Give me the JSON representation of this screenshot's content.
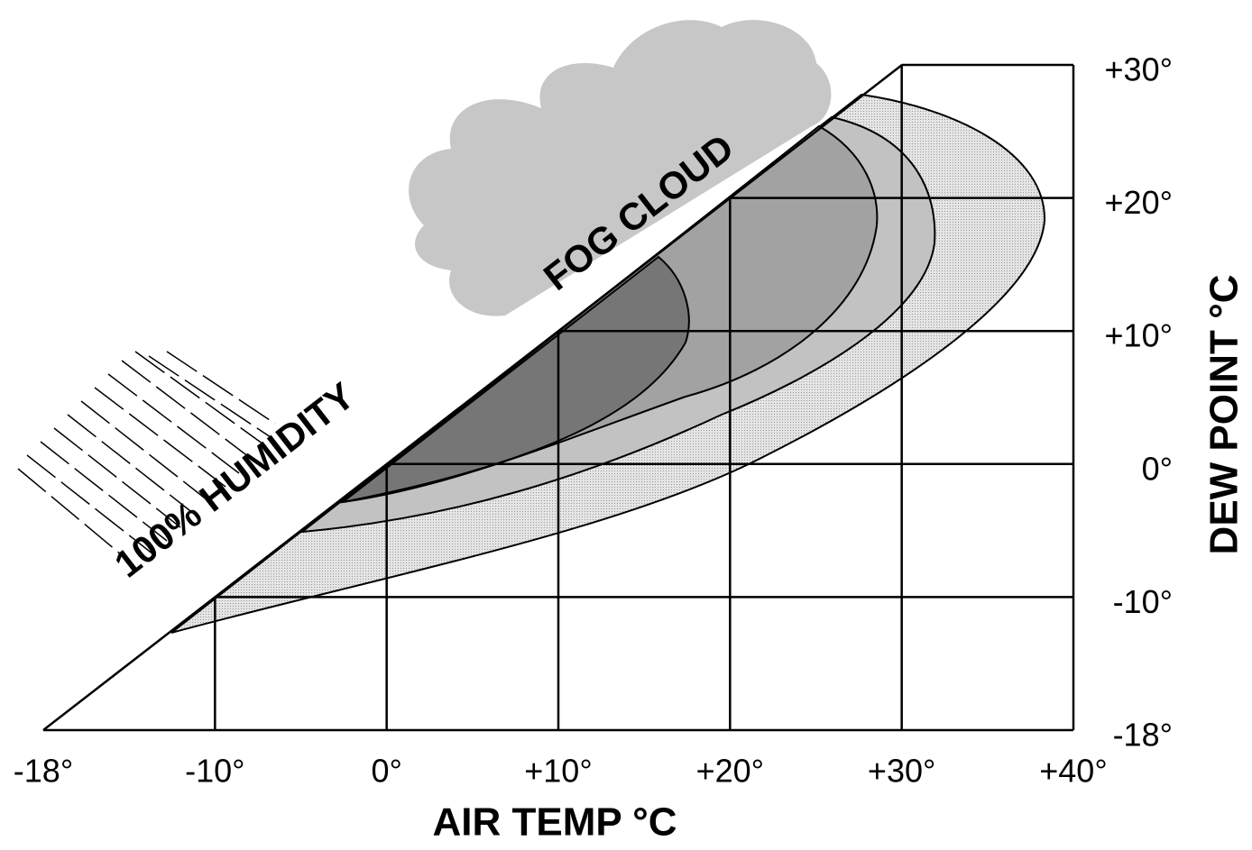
{
  "chart_data": {
    "type": "contour",
    "x_label": "AIR TEMP °C",
    "y_label": "DEW POINT °C",
    "annotations": [
      "FOG CLOUD",
      "100% HUMIDITY"
    ],
    "xlim": [
      -18,
      40
    ],
    "xticks": [
      {
        "value": -18,
        "label": "-18°"
      },
      {
        "value": -10,
        "label": "-10°"
      },
      {
        "value": 0,
        "label": "0°"
      },
      {
        "value": 10,
        "label": "+10°"
      },
      {
        "value": 20,
        "label": "+20°"
      },
      {
        "value": 30,
        "label": "+30°"
      },
      {
        "value": 40,
        "label": "+40°"
      }
    ],
    "ylim": [
      -18,
      30
    ],
    "yticks": [
      {
        "value": -18,
        "label": "-18°"
      },
      {
        "value": -10,
        "label": "-10°"
      },
      {
        "value": 0,
        "label": "0°"
      },
      {
        "value": 10,
        "label": "+10°"
      },
      {
        "value": 20,
        "label": "+20°"
      },
      {
        "value": 30,
        "label": "+30°"
      }
    ],
    "grid": true
  }
}
